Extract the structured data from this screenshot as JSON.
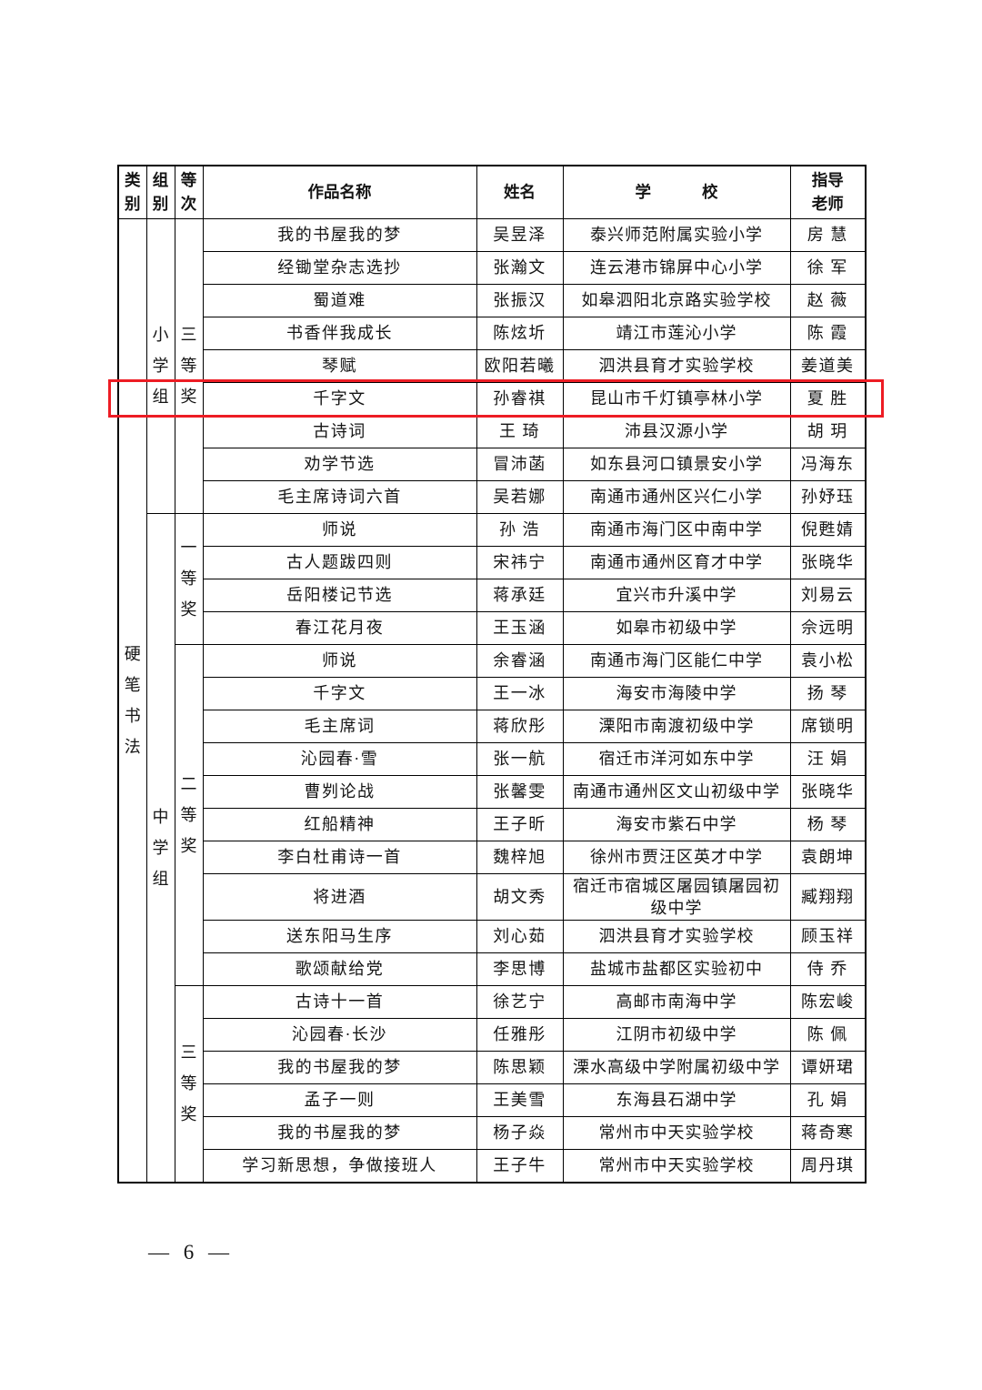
{
  "page": {
    "number_label": "— 6 —"
  },
  "table": {
    "headers": [
      "类别",
      "组别",
      "等次",
      "作品名称",
      "姓名",
      "学校",
      "指导老师"
    ],
    "category": "硬笔书法",
    "highlight": {
      "row_index": 5,
      "color": "#ed1c24"
    },
    "groups": [
      {
        "group": "小学组",
        "ranks": [
          {
            "rank": "三等奖",
            "rows": [
              {
                "work": "我的书屋我的梦",
                "name": "吴昱泽",
                "school": "泰兴师范附属实验小学",
                "teacher": "房 慧"
              },
              {
                "work": "经锄堂杂志选抄",
                "name": "张瀚文",
                "school": "连云港市锦屏中心小学",
                "teacher": "徐 军"
              },
              {
                "work": "蜀道难",
                "name": "张振汉",
                "school": "如皋泗阳北京路实验学校",
                "teacher": "赵 薇"
              },
              {
                "work": "书香伴我成长",
                "name": "陈炫圻",
                "school": "靖江市莲沁小学",
                "teacher": "陈 霞"
              },
              {
                "work": "琴赋",
                "name": "欧阳若曦",
                "school": "泗洪县育才实验学校",
                "teacher": "姜道美"
              },
              {
                "work": "千字文",
                "name": "孙睿祺",
                "school": "昆山市千灯镇亭林小学",
                "teacher": "夏 胜"
              },
              {
                "work": "古诗词",
                "name": "王 琦",
                "school": "沛县汉源小学",
                "teacher": "胡 玥"
              },
              {
                "work": "劝学节选",
                "name": "冒沛菡",
                "school": "如东县河口镇景安小学",
                "teacher": "冯海东"
              },
              {
                "work": "毛主席诗词六首",
                "name": "吴若娜",
                "school": "南通市通州区兴仁小学",
                "teacher": "孙妤珏"
              }
            ]
          }
        ]
      },
      {
        "group": "中学组",
        "ranks": [
          {
            "rank": "一等奖",
            "rows": [
              {
                "work": "师说",
                "name": "孙 浩",
                "school": "南通市海门区中南中学",
                "teacher": "倪甦婧"
              },
              {
                "work": "古人题跋四则",
                "name": "宋祎宁",
                "school": "南通市通州区育才中学",
                "teacher": "张晓华"
              },
              {
                "work": "岳阳楼记节选",
                "name": "蒋承廷",
                "school": "宜兴市升溪中学",
                "teacher": "刘易云"
              },
              {
                "work": "春江花月夜",
                "name": "王玉涵",
                "school": "如皋市初级中学",
                "teacher": "佘远明"
              }
            ]
          },
          {
            "rank": "二等奖",
            "rows": [
              {
                "work": "师说",
                "name": "余睿涵",
                "school": "南通市海门区能仁中学",
                "teacher": "袁小松"
              },
              {
                "work": "千字文",
                "name": "王一冰",
                "school": "海安市海陵中学",
                "teacher": "扬 琴"
              },
              {
                "work": "毛主席词",
                "name": "蒋欣彤",
                "school": "溧阳市南渡初级中学",
                "teacher": "席锁明"
              },
              {
                "work": "沁园春·雪",
                "name": "张一航",
                "school": "宿迁市洋河如东中学",
                "teacher": "汪 娟"
              },
              {
                "work": "曹刿论战",
                "name": "张馨雯",
                "school": "南通市通州区文山初级中学",
                "teacher": "张晓华"
              },
              {
                "work": "红船精神",
                "name": "王子昕",
                "school": "海安市紫石中学",
                "teacher": "杨 琴"
              },
              {
                "work": "李白杜甫诗一首",
                "name": "魏梓旭",
                "school": "徐州市贾汪区英才中学",
                "teacher": "袁朗坤"
              },
              {
                "work": "将进酒",
                "name": "胡文秀",
                "school": "宿迁市宿城区屠园镇屠园初级中学",
                "teacher": "臧翔翔"
              },
              {
                "work": "送东阳马生序",
                "name": "刘心茹",
                "school": "泗洪县育才实验学校",
                "teacher": "顾玉祥"
              },
              {
                "work": "歌颂献给党",
                "name": "李思博",
                "school": "盐城市盐都区实验初中",
                "teacher": "侍 乔"
              }
            ]
          },
          {
            "rank": "三等奖",
            "rows": [
              {
                "work": "古诗十一首",
                "name": "徐艺宁",
                "school": "高邮市南海中学",
                "teacher": "陈宏峻"
              },
              {
                "work": "沁园春·长沙",
                "name": "任雅彤",
                "school": "江阴市初级中学",
                "teacher": "陈 佩"
              },
              {
                "work": "我的书屋我的梦",
                "name": "陈思颖",
                "school": "溧水高级中学附属初级中学",
                "teacher": "谭妍珺"
              },
              {
                "work": "孟子一则",
                "name": "王美雪",
                "school": "东海县石湖中学",
                "teacher": "孔 娟"
              },
              {
                "work": "我的书屋我的梦",
                "name": "杨子焱",
                "school": "常州市中天实验学校",
                "teacher": "蒋奇寒"
              },
              {
                "work": "学习新思想，争做接班人",
                "name": "王子牛",
                "school": "常州市中天实验学校",
                "teacher": "周丹琪"
              }
            ]
          }
        ]
      }
    ]
  }
}
